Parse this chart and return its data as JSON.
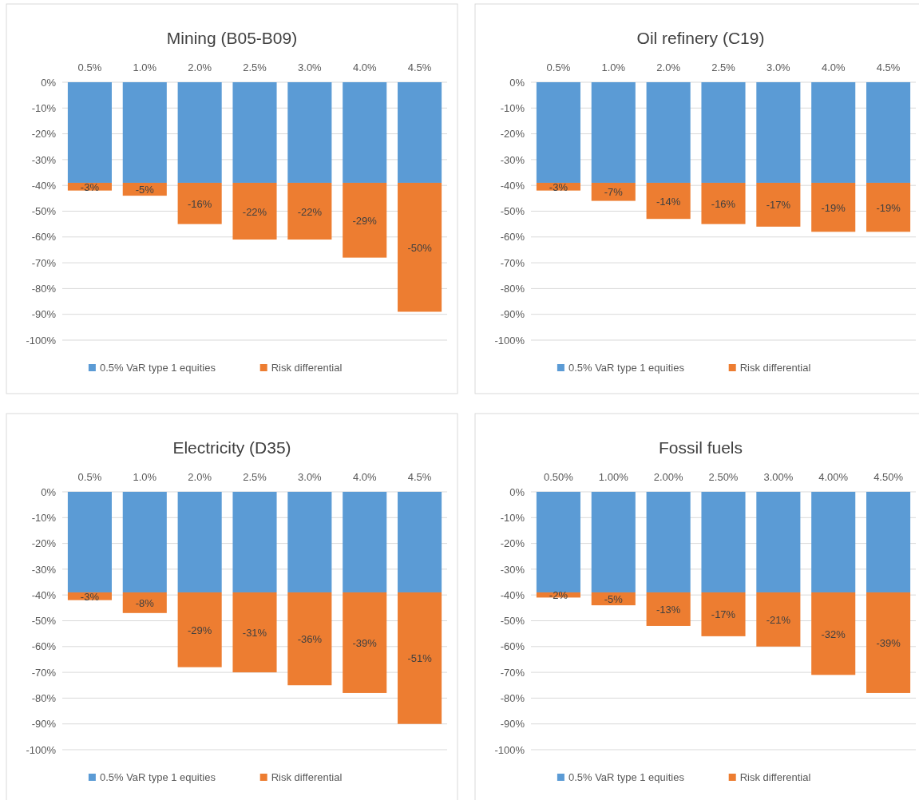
{
  "chart_data": [
    {
      "type": "bar",
      "title": "Mining (B05-B09)",
      "stacked": true,
      "legend": "bottom",
      "grid": "y",
      "categories": [
        "0.5%",
        "1.0%",
        "2.0%",
        "2.5%",
        "3.0%",
        "4.0%",
        "4.5%"
      ],
      "ylim": [
        -100,
        0
      ],
      "yticks": [
        {
          "value": 0,
          "label": "0%"
        },
        {
          "value": -10,
          "label": "-10%"
        },
        {
          "value": -20,
          "label": "-20%"
        },
        {
          "value": -30,
          "label": "-30%"
        },
        {
          "value": -40,
          "label": "-40%"
        },
        {
          "value": -50,
          "label": "-50%"
        },
        {
          "value": -60,
          "label": "-60%"
        },
        {
          "value": -70,
          "label": "-70%"
        },
        {
          "value": -80,
          "label": "-80%"
        },
        {
          "value": -90,
          "label": "-90%"
        },
        {
          "value": -100,
          "label": "-100%"
        }
      ],
      "series": [
        {
          "name": "0.5% VaR type 1 equities",
          "color": "#5b9bd5",
          "values": [
            -39,
            -39,
            -39,
            -39,
            -39,
            -39,
            -39
          ]
        },
        {
          "name": "Risk differential",
          "color": "#ed7d31",
          "values": [
            -3,
            -5,
            -16,
            -22,
            -22,
            -29,
            -50
          ],
          "value_labels": [
            "-3%",
            "-5%",
            "-16%",
            "-22%",
            "-22%",
            "-29%",
            "-50%"
          ]
        }
      ]
    },
    {
      "type": "bar",
      "title": "Oil refinery (C19)",
      "stacked": true,
      "legend": "bottom",
      "grid": "y",
      "categories": [
        "0.5%",
        "1.0%",
        "2.0%",
        "2.5%",
        "3.0%",
        "4.0%",
        "4.5%"
      ],
      "ylim": [
        -100,
        0
      ],
      "yticks": [
        {
          "value": 0,
          "label": "0%"
        },
        {
          "value": -10,
          "label": "-10%"
        },
        {
          "value": -20,
          "label": "-20%"
        },
        {
          "value": -30,
          "label": "-30%"
        },
        {
          "value": -40,
          "label": "-40%"
        },
        {
          "value": -50,
          "label": "-50%"
        },
        {
          "value": -60,
          "label": "-60%"
        },
        {
          "value": -70,
          "label": "-70%"
        },
        {
          "value": -80,
          "label": "-80%"
        },
        {
          "value": -90,
          "label": "-90%"
        },
        {
          "value": -100,
          "label": "-100%"
        }
      ],
      "series": [
        {
          "name": "0.5% VaR type 1 equities",
          "color": "#5b9bd5",
          "values": [
            -39,
            -39,
            -39,
            -39,
            -39,
            -39,
            -39
          ]
        },
        {
          "name": "Risk differential",
          "color": "#ed7d31",
          "values": [
            -3,
            -7,
            -14,
            -16,
            -17,
            -19,
            -19
          ],
          "value_labels": [
            "-3%",
            "-7%",
            "-14%",
            "-16%",
            "-17%",
            "-19%",
            "-19%"
          ]
        }
      ]
    },
    {
      "type": "bar",
      "title": "Electricity (D35)",
      "stacked": true,
      "legend": "bottom",
      "grid": "y",
      "categories": [
        "0.5%",
        "1.0%",
        "2.0%",
        "2.5%",
        "3.0%",
        "4.0%",
        "4.5%"
      ],
      "ylim": [
        -100,
        0
      ],
      "yticks": [
        {
          "value": 0,
          "label": "0%"
        },
        {
          "value": -10,
          "label": "-10%"
        },
        {
          "value": -20,
          "label": "-20%"
        },
        {
          "value": -30,
          "label": "-30%"
        },
        {
          "value": -40,
          "label": "-40%"
        },
        {
          "value": -50,
          "label": "-50%"
        },
        {
          "value": -60,
          "label": "-60%"
        },
        {
          "value": -70,
          "label": "-70%"
        },
        {
          "value": -80,
          "label": "-80%"
        },
        {
          "value": -90,
          "label": "-90%"
        },
        {
          "value": -100,
          "label": "-100%"
        }
      ],
      "series": [
        {
          "name": "0.5% VaR type 1 equities",
          "color": "#5b9bd5",
          "values": [
            -39,
            -39,
            -39,
            -39,
            -39,
            -39,
            -39
          ]
        },
        {
          "name": "Risk differential",
          "color": "#ed7d31",
          "values": [
            -3,
            -8,
            -29,
            -31,
            -36,
            -39,
            -51
          ],
          "value_labels": [
            "-3%",
            "-8%",
            "-29%",
            "-31%",
            "-36%",
            "-39%",
            "-51%"
          ]
        }
      ]
    },
    {
      "type": "bar",
      "title": "Fossil fuels",
      "stacked": true,
      "legend": "bottom",
      "grid": "y",
      "categories": [
        "0.50%",
        "1.00%",
        "2.00%",
        "2.50%",
        "3.00%",
        "4.00%",
        "4.50%"
      ],
      "ylim": [
        -100,
        0
      ],
      "yticks": [
        {
          "value": 0,
          "label": "0%"
        },
        {
          "value": -10,
          "label": "-10%"
        },
        {
          "value": -20,
          "label": "-20%"
        },
        {
          "value": -30,
          "label": "-30%"
        },
        {
          "value": -40,
          "label": "-40%"
        },
        {
          "value": -50,
          "label": "-50%"
        },
        {
          "value": -60,
          "label": "-60%"
        },
        {
          "value": -70,
          "label": "-70%"
        },
        {
          "value": -80,
          "label": "-80%"
        },
        {
          "value": -90,
          "label": "-90%"
        },
        {
          "value": -100,
          "label": "-100%"
        }
      ],
      "series": [
        {
          "name": "0.5% VaR type 1 equities",
          "color": "#5b9bd5",
          "values": [
            -39,
            -39,
            -39,
            -39,
            -39,
            -39,
            -39
          ]
        },
        {
          "name": "Risk differential",
          "color": "#ed7d31",
          "values": [
            -2,
            -5,
            -13,
            -17,
            -21,
            -32,
            -39
          ],
          "value_labels": [
            "-2%",
            "-5%",
            "-13%",
            "-17%",
            "-21%",
            "-32%",
            "-39%"
          ]
        }
      ]
    }
  ]
}
